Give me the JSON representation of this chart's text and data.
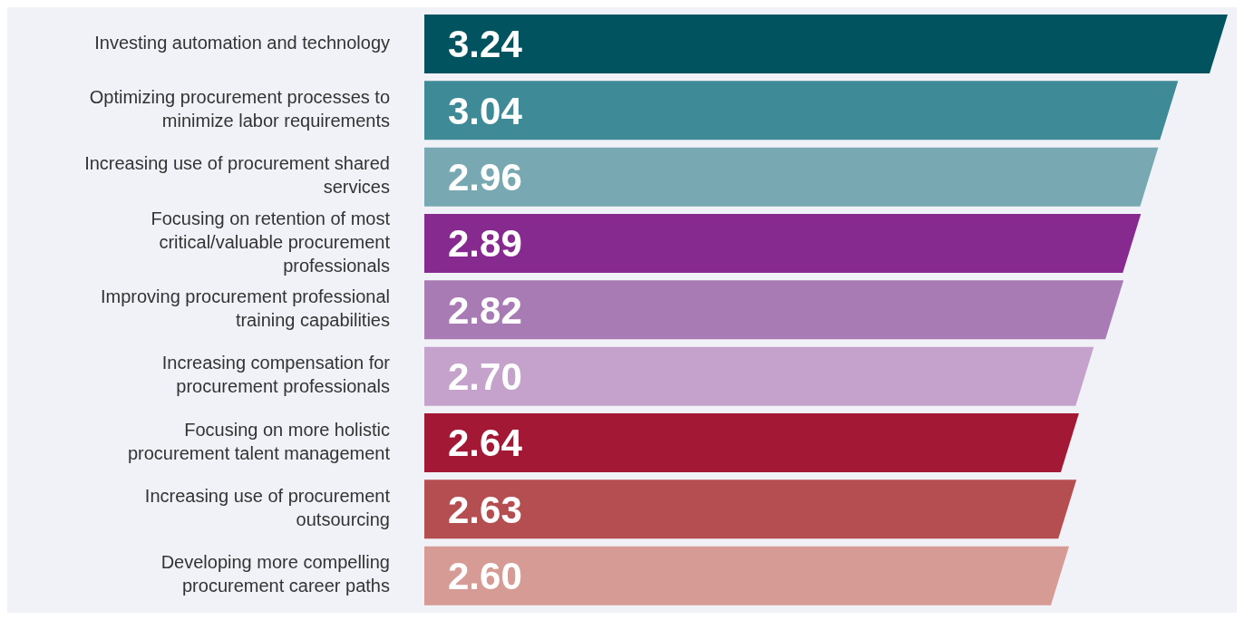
{
  "chart_data": {
    "type": "bar",
    "orientation": "horizontal",
    "categories": [
      "Investing automation and technology",
      "Optimizing procurement processes to minimize labor requirements",
      "Increasing use of procurement shared services",
      "Focusing on retention of most critical/valuable procurement professionals",
      "Improving procurement professional training capabilities",
      "Increasing compensation for procurement professionals",
      "Focusing on more holistic procurement talent management",
      "Increasing use of procurement outsourcing",
      "Developing more compelling procurement career paths"
    ],
    "values": [
      3.24,
      3.04,
      2.96,
      2.89,
      2.82,
      2.7,
      2.64,
      2.63,
      2.6
    ],
    "value_labels": [
      "3.24",
      "3.04",
      "2.96",
      "2.89",
      "2.82",
      "2.70",
      "2.64",
      "2.63",
      "2.60"
    ],
    "colors": [
      "#00535f",
      "#3e8a96",
      "#78a9b3",
      "#862a8f",
      "#a87bb4",
      "#c4a2cc",
      "#a31834",
      "#b54e50",
      "#d59b94"
    ]
  }
}
